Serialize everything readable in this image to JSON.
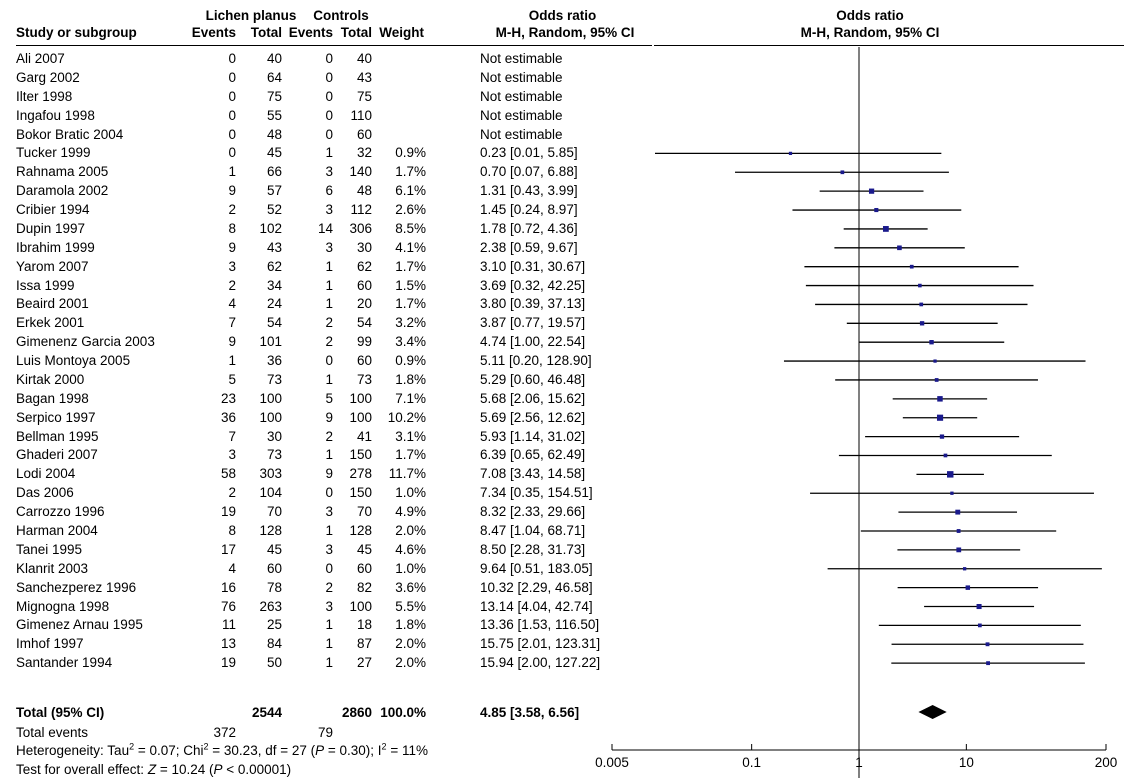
{
  "header": {
    "group1": "Lichen planus",
    "group2": "Controls",
    "odds_ratio_title": "Odds ratio",
    "plot_title": "Odds ratio",
    "col_study": "Study or subgroup",
    "col_events1": "Events",
    "col_total1": "Total",
    "col_events2": "Events",
    "col_total2": "Total",
    "col_weight": "Weight",
    "col_method": "M-H, Random, 95% CI",
    "plot_method": "M-H, Random, 95% CI"
  },
  "studies": [
    {
      "name": "Ali 2007",
      "e1": "0",
      "t1": "40",
      "e2": "0",
      "t2": "40",
      "weight": "",
      "ci": "Not estimable",
      "or": null,
      "lo": null,
      "hi": null,
      "w": 0
    },
    {
      "name": "Garg 2002",
      "e1": "0",
      "t1": "64",
      "e2": "0",
      "t2": "43",
      "weight": "",
      "ci": "Not estimable",
      "or": null,
      "lo": null,
      "hi": null,
      "w": 0
    },
    {
      "name": "Ilter 1998",
      "e1": "0",
      "t1": "75",
      "e2": "0",
      "t2": "75",
      "weight": "",
      "ci": "Not estimable",
      "or": null,
      "lo": null,
      "hi": null,
      "w": 0
    },
    {
      "name": "Ingafou 1998",
      "e1": "0",
      "t1": "55",
      "e2": "0",
      "t2": "110",
      "weight": "",
      "ci": "Not estimable",
      "or": null,
      "lo": null,
      "hi": null,
      "w": 0
    },
    {
      "name": "Bokor Bratic 2004",
      "e1": "0",
      "t1": "48",
      "e2": "0",
      "t2": "60",
      "weight": "",
      "ci": "Not estimable",
      "or": null,
      "lo": null,
      "hi": null,
      "w": 0
    },
    {
      "name": "Tucker 1999",
      "e1": "0",
      "t1": "45",
      "e2": "1",
      "t2": "32",
      "weight": "0.9%",
      "ci": "0.23 [0.01, 5.85]",
      "or": 0.23,
      "lo": 0.01,
      "hi": 5.85,
      "w": 0.9
    },
    {
      "name": "Rahnama 2005",
      "e1": "1",
      "t1": "66",
      "e2": "3",
      "t2": "140",
      "weight": "1.7%",
      "ci": "0.70 [0.07, 6.88]",
      "or": 0.7,
      "lo": 0.07,
      "hi": 6.88,
      "w": 1.7
    },
    {
      "name": "Daramola 2002",
      "e1": "9",
      "t1": "57",
      "e2": "6",
      "t2": "48",
      "weight": "6.1%",
      "ci": "1.31 [0.43, 3.99]",
      "or": 1.31,
      "lo": 0.43,
      "hi": 3.99,
      "w": 6.1
    },
    {
      "name": "Cribier 1994",
      "e1": "2",
      "t1": "52",
      "e2": "3",
      "t2": "112",
      "weight": "2.6%",
      "ci": "1.45 [0.24, 8.97]",
      "or": 1.45,
      "lo": 0.24,
      "hi": 8.97,
      "w": 2.6
    },
    {
      "name": "Dupin 1997",
      "e1": "8",
      "t1": "102",
      "e2": "14",
      "t2": "306",
      "weight": "8.5%",
      "ci": "1.78 [0.72, 4.36]",
      "or": 1.78,
      "lo": 0.72,
      "hi": 4.36,
      "w": 8.5
    },
    {
      "name": "Ibrahim 1999",
      "e1": "9",
      "t1": "43",
      "e2": "3",
      "t2": "30",
      "weight": "4.1%",
      "ci": "2.38 [0.59, 9.67]",
      "or": 2.38,
      "lo": 0.59,
      "hi": 9.67,
      "w": 4.1
    },
    {
      "name": "Yarom 2007",
      "e1": "3",
      "t1": "62",
      "e2": "1",
      "t2": "62",
      "weight": "1.7%",
      "ci": "3.10 [0.31, 30.67]",
      "or": 3.1,
      "lo": 0.31,
      "hi": 30.67,
      "w": 1.7
    },
    {
      "name": "Issa 1999",
      "e1": "2",
      "t1": "34",
      "e2": "1",
      "t2": "60",
      "weight": "1.5%",
      "ci": "3.69 [0.32, 42.25]",
      "or": 3.69,
      "lo": 0.32,
      "hi": 42.25,
      "w": 1.5
    },
    {
      "name": "Beaird 2001",
      "e1": "4",
      "t1": "24",
      "e2": "1",
      "t2": "20",
      "weight": "1.7%",
      "ci": "3.80 [0.39, 37.13]",
      "or": 3.8,
      "lo": 0.39,
      "hi": 37.13,
      "w": 1.7
    },
    {
      "name": "Erkek 2001",
      "e1": "7",
      "t1": "54",
      "e2": "2",
      "t2": "54",
      "weight": "3.2%",
      "ci": "3.87 [0.77, 19.57]",
      "or": 3.87,
      "lo": 0.77,
      "hi": 19.57,
      "w": 3.2
    },
    {
      "name": "Gimenenz Garcia 2003",
      "e1": "9",
      "t1": "101",
      "e2": "2",
      "t2": "99",
      "weight": "3.4%",
      "ci": "4.74 [1.00, 22.54]",
      "or": 4.74,
      "lo": 1.0,
      "hi": 22.54,
      "w": 3.4
    },
    {
      "name": "Luis Montoya 2005",
      "e1": "1",
      "t1": "36",
      "e2": "0",
      "t2": "60",
      "weight": "0.9%",
      "ci": "5.11 [0.20, 128.90]",
      "or": 5.11,
      "lo": 0.2,
      "hi": 128.9,
      "w": 0.9
    },
    {
      "name": "Kirtak 2000",
      "e1": "5",
      "t1": "73",
      "e2": "1",
      "t2": "73",
      "weight": "1.8%",
      "ci": "5.29 [0.60, 46.48]",
      "or": 5.29,
      "lo": 0.6,
      "hi": 46.48,
      "w": 1.8
    },
    {
      "name": "Bagan 1998",
      "e1": "23",
      "t1": "100",
      "e2": "5",
      "t2": "100",
      "weight": "7.1%",
      "ci": "5.68 [2.06, 15.62]",
      "or": 5.68,
      "lo": 2.06,
      "hi": 15.62,
      "w": 7.1
    },
    {
      "name": "Serpico 1997",
      "e1": "36",
      "t1": "100",
      "e2": "9",
      "t2": "100",
      "weight": "10.2%",
      "ci": "5.69 [2.56, 12.62]",
      "or": 5.69,
      "lo": 2.56,
      "hi": 12.62,
      "w": 10.2
    },
    {
      "name": "Bellman 1995",
      "e1": "7",
      "t1": "30",
      "e2": "2",
      "t2": "41",
      "weight": "3.1%",
      "ci": "5.93 [1.14, 31.02]",
      "or": 5.93,
      "lo": 1.14,
      "hi": 31.02,
      "w": 3.1
    },
    {
      "name": "Ghaderi 2007",
      "e1": "3",
      "t1": "73",
      "e2": "1",
      "t2": "150",
      "weight": "1.7%",
      "ci": "6.39 [0.65, 62.49]",
      "or": 6.39,
      "lo": 0.65,
      "hi": 62.49,
      "w": 1.7
    },
    {
      "name": "Lodi 2004",
      "e1": "58",
      "t1": "303",
      "e2": "9",
      "t2": "278",
      "weight": "11.7%",
      "ci": "7.08 [3.43, 14.58]",
      "or": 7.08,
      "lo": 3.43,
      "hi": 14.58,
      "w": 11.7
    },
    {
      "name": "Das 2006",
      "e1": "2",
      "t1": "104",
      "e2": "0",
      "t2": "150",
      "weight": "1.0%",
      "ci": "7.34 [0.35, 154.51]",
      "or": 7.34,
      "lo": 0.35,
      "hi": 154.51,
      "w": 1.0
    },
    {
      "name": "Carrozzo 1996",
      "e1": "19",
      "t1": "70",
      "e2": "3",
      "t2": "70",
      "weight": "4.9%",
      "ci": "8.32 [2.33, 29.66]",
      "or": 8.32,
      "lo": 2.33,
      "hi": 29.66,
      "w": 4.9
    },
    {
      "name": "Harman 2004",
      "e1": "8",
      "t1": "128",
      "e2": "1",
      "t2": "128",
      "weight": "2.0%",
      "ci": "8.47 [1.04, 68.71]",
      "or": 8.47,
      "lo": 1.04,
      "hi": 68.71,
      "w": 2.0
    },
    {
      "name": "Tanei 1995",
      "e1": "17",
      "t1": "45",
      "e2": "3",
      "t2": "45",
      "weight": "4.6%",
      "ci": "8.50 [2.28, 31.73]",
      "or": 8.5,
      "lo": 2.28,
      "hi": 31.73,
      "w": 4.6
    },
    {
      "name": "Klanrit 2003",
      "e1": "4",
      "t1": "60",
      "e2": "0",
      "t2": "60",
      "weight": "1.0%",
      "ci": "9.64 [0.51, 183.05]",
      "or": 9.64,
      "lo": 0.51,
      "hi": 183.05,
      "w": 1.0
    },
    {
      "name": "Sanchezperez 1996",
      "e1": "16",
      "t1": "78",
      "e2": "2",
      "t2": "82",
      "weight": "3.6%",
      "ci": "10.32 [2.29, 46.58]",
      "or": 10.32,
      "lo": 2.29,
      "hi": 46.58,
      "w": 3.6
    },
    {
      "name": "Mignogna 1998",
      "e1": "76",
      "t1": "263",
      "e2": "3",
      "t2": "100",
      "weight": "5.5%",
      "ci": "13.14 [4.04, 42.74]",
      "or": 13.14,
      "lo": 4.04,
      "hi": 42.74,
      "w": 5.5
    },
    {
      "name": "Gimenez Arnau 1995",
      "e1": "11",
      "t1": "25",
      "e2": "1",
      "t2": "18",
      "weight": "1.8%",
      "ci": "13.36 [1.53, 116.50]",
      "or": 13.36,
      "lo": 1.53,
      "hi": 116.5,
      "w": 1.8
    },
    {
      "name": "Imhof 1997",
      "e1": "13",
      "t1": "84",
      "e2": "1",
      "t2": "87",
      "weight": "2.0%",
      "ci": "15.75 [2.01, 123.31]",
      "or": 15.75,
      "lo": 2.01,
      "hi": 123.31,
      "w": 2.0
    },
    {
      "name": "Santander 1994",
      "e1": "19",
      "t1": "50",
      "e2": "1",
      "t2": "27",
      "weight": "2.0%",
      "ci": "15.94 [2.00, 127.22]",
      "or": 15.94,
      "lo": 2.0,
      "hi": 127.22,
      "w": 2.0
    }
  ],
  "total": {
    "label": "Total (95% CI)",
    "t1": "2544",
    "t2": "2860",
    "weight": "100.0%",
    "ci": "4.85 [3.58, 6.56]",
    "or": 4.85,
    "lo": 3.58,
    "hi": 6.56
  },
  "total_events": {
    "label": "Total events",
    "e1": "372",
    "e2": "79"
  },
  "heterogeneity": {
    "prefix": "Heterogeneity: Tau",
    "tau_sup": "2",
    "tau_val": " = 0.07; Chi",
    "chi_sup": "2",
    "chi_val": " = 30.23, df = 27 (",
    "p": "P",
    "p_val": " = 0.30); I",
    "i_sup": "2",
    "i_val": " = 11%"
  },
  "overall": {
    "prefix": "Test for overall effect: ",
    "z": "Z",
    "z_val": " = 10.24 (",
    "p": "P",
    "p_val": " < 0.00001)"
  },
  "chart_data": {
    "type": "forest",
    "x_scale": "log",
    "xlim": [
      0.005,
      200
    ],
    "ticks": [
      {
        "value": 0.005,
        "label": "0.005"
      },
      {
        "value": 0.1,
        "label": "0.1"
      },
      {
        "value": 1,
        "label": "1"
      },
      {
        "value": 10,
        "label": "10"
      },
      {
        "value": 200,
        "label": "200"
      }
    ],
    "reference_line": 1,
    "marker_color": "#1a1a8c"
  }
}
